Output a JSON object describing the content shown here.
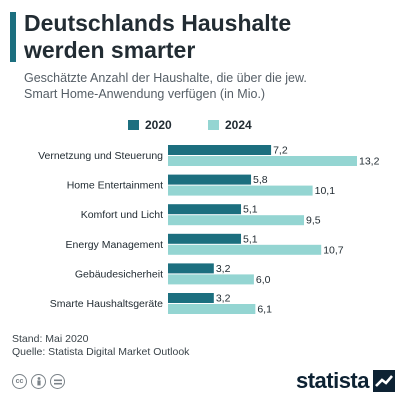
{
  "header": {
    "title_line1": "Deutschlands Haushalte",
    "title_line2": "werden smarter",
    "subtitle_line1": "Geschätzte Anzahl der Haushalte, die über die jew.",
    "subtitle_line2": "Smart Home-Anwendung verfügen (in Mio.)"
  },
  "colors": {
    "accent": "#1c6f7f",
    "series_2020": "#1c6f7f",
    "series_2024": "#94d5d2"
  },
  "chart_data": {
    "type": "bar",
    "orientation": "horizontal",
    "title": "Deutschlands Haushalte werden smarter",
    "subtitle": "Geschätzte Anzahl der Haushalte, die über die jew. Smart Home-Anwendung verfügen (in Mio.)",
    "categories": [
      "Vernetzung und Steuerung",
      "Home Entertainment",
      "Komfort und Licht",
      "Energy Management",
      "Gebäudesicherheit",
      "Smarte Haushaltsgeräte"
    ],
    "series": [
      {
        "name": "2020",
        "values": [
          7.2,
          5.8,
          5.1,
          5.1,
          3.2,
          3.2
        ],
        "labels": [
          "7,2",
          "5,8",
          "5,1",
          "5,1",
          "3,2",
          "3,2"
        ]
      },
      {
        "name": "2024",
        "values": [
          13.2,
          10.1,
          9.5,
          10.7,
          6.0,
          6.1
        ],
        "labels": [
          "13,2",
          "10,1",
          "9,5",
          "10,7",
          "6,0",
          "6,1"
        ]
      }
    ],
    "xlim": [
      0,
      13.2
    ],
    "legend_position": "top",
    "grid": false,
    "data_labels": true
  },
  "footer": {
    "stand": "Stand: Mai 2020",
    "quelle": "Quelle: Statista Digital Market Outlook"
  },
  "license_icons": [
    "cc-icon",
    "attribution-icon",
    "equals-icon"
  ],
  "brand": {
    "name": "statista"
  }
}
